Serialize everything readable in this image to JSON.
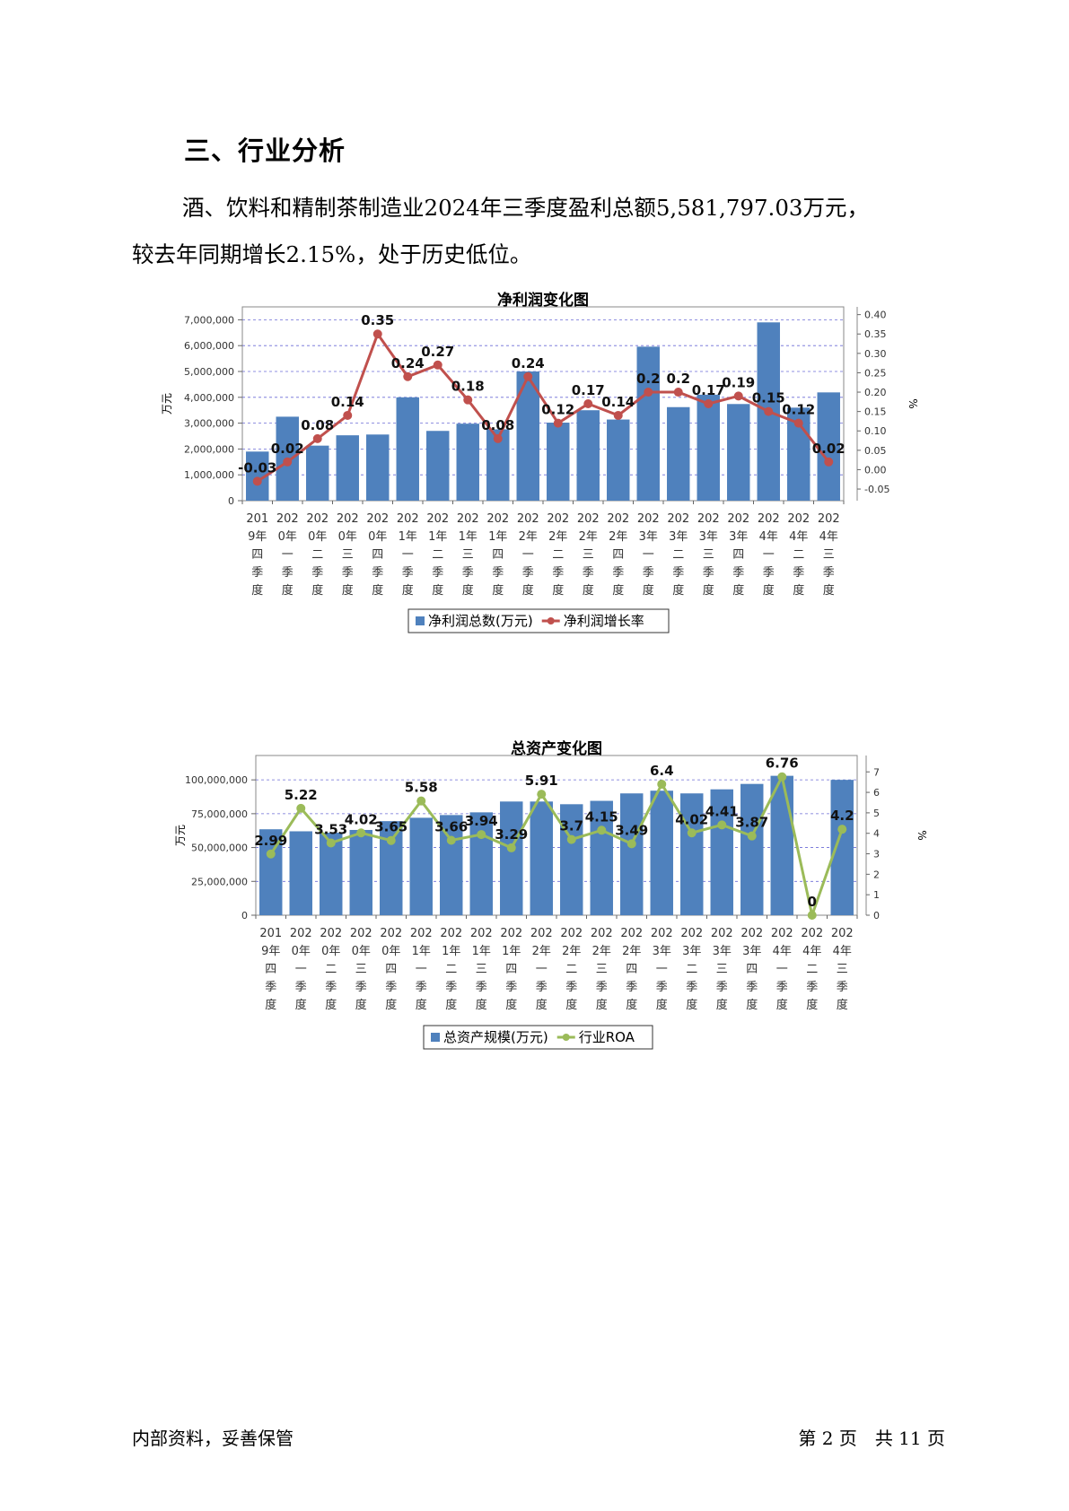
{
  "heading": "三、行业分析",
  "paragraph": {
    "line1": "酒、饮料和精制茶制造业2024年三季度盈利总额5,581,797.03万元，",
    "line2": "较去年同期增长2.15%，处于历史低位。"
  },
  "footer": {
    "left": "内部资料，妥善保管",
    "right": "第 2 页　共 11 页"
  },
  "chart_data": [
    {
      "type": "bar+line",
      "title": "净利润变化图",
      "ylabel": "万元",
      "y2label": "%",
      "categories": [
        "2019年四季度",
        "2020年一季度",
        "2020年二季度",
        "2020年三季度",
        "2020年四季度",
        "2021年一季度",
        "2021年二季度",
        "2021年三季度",
        "2021年四季度",
        "2022年一季度",
        "2022年二季度",
        "2022年三季度",
        "2022年四季度",
        "2023年一季度",
        "2023年二季度",
        "2023年三季度",
        "2023年四季度",
        "2024年一季度",
        "2024年二季度",
        "2024年三季度"
      ],
      "ylim": [
        0,
        7500000
      ],
      "yticks": [
        "0",
        "1,000,000",
        "2,000,000",
        "3,000,000",
        "4,000,000",
        "5,000,000",
        "6,000,000",
        "7,000,000"
      ],
      "y2lim": [
        -0.08,
        0.42
      ],
      "y2ticks": [
        "-0.05",
        "0.00",
        "0.05",
        "0.10",
        "0.15",
        "0.20",
        "0.25",
        "0.30",
        "0.35",
        "0.40"
      ],
      "series": [
        {
          "name": "净利润总数(万元)",
          "kind": "bar",
          "color": "#4f81bd",
          "values": [
            1900000,
            3250000,
            2130000,
            2530000,
            2560000,
            4000000,
            2700000,
            2980000,
            2760000,
            5000000,
            3020000,
            3500000,
            3140000,
            5960000,
            3620000,
            4100000,
            3740000,
            6900000,
            3600000,
            4190000
          ]
        },
        {
          "name": "净利润增长率",
          "kind": "line",
          "color": "#c0504d",
          "values": [
            -0.03,
            0.02,
            0.08,
            0.14,
            0.35,
            0.24,
            0.27,
            0.18,
            0.08,
            0.24,
            0.12,
            0.17,
            0.14,
            0.2,
            0.2,
            0.17,
            0.19,
            0.15,
            0.12,
            0.02
          ],
          "labels": [
            "-0.03",
            "0.02",
            "0.08",
            "0.14",
            "0.35",
            "0.24",
            "0.27",
            "0.18",
            "0.08",
            "0.24",
            "0.12",
            "0.17",
            "0.14",
            "0.2",
            "0.2",
            "0.17",
            "0.19",
            "0.15",
            "0.12",
            "0.02"
          ]
        }
      ],
      "grid": true,
      "legend": "bottom"
    },
    {
      "type": "bar+line",
      "title": "总资产变化图",
      "ylabel": "万元",
      "y2label": "%",
      "categories": [
        "2019年四季度",
        "2020年一季度",
        "2020年二季度",
        "2020年三季度",
        "2020年四季度",
        "2021年一季度",
        "2021年二季度",
        "2021年三季度",
        "2021年四季度",
        "2022年一季度",
        "2022年二季度",
        "2022年三季度",
        "2022年四季度",
        "2023年一季度",
        "2023年二季度",
        "2023年三季度",
        "2023年四季度",
        "2024年一季度",
        "2024年二季度",
        "2024年三季度"
      ],
      "ylim": [
        0,
        118000000
      ],
      "yticks": [
        "0",
        "25,000,000",
        "50,000,000",
        "75,000,000",
        "100,000,000"
      ],
      "y2lim": [
        0,
        7.8
      ],
      "y2ticks": [
        "0",
        "1",
        "2",
        "3",
        "4",
        "5",
        "6",
        "7"
      ],
      "series": [
        {
          "name": "总资产规模(万元)",
          "kind": "bar",
          "color": "#4f81bd",
          "values": [
            63500000,
            62000000,
            61000000,
            63000000,
            69500000,
            72000000,
            74000000,
            76000000,
            84000000,
            84000000,
            82000000,
            84500000,
            90000000,
            92000000,
            90000000,
            93000000,
            97000000,
            103000000,
            0,
            100000000
          ]
        },
        {
          "name": "行业ROA",
          "kind": "line",
          "color": "#9bbb59",
          "values": [
            2.99,
            5.22,
            3.53,
            4.02,
            3.65,
            5.58,
            3.66,
            3.94,
            3.29,
            5.91,
            3.7,
            4.15,
            3.49,
            6.4,
            4.02,
            4.41,
            3.87,
            6.76,
            0,
            4.2
          ],
          "labels": [
            "2.99",
            "5.22",
            "3.53",
            "4.02",
            "3.65",
            "5.58",
            "3.66",
            "3.94",
            "3.29",
            "5.91",
            "3.7",
            "4.15",
            "3.49",
            "6.4",
            "4.02",
            "4.41",
            "3.87",
            "6.76",
            "0",
            "4.2"
          ]
        }
      ],
      "grid": true,
      "legend": "bottom"
    }
  ]
}
